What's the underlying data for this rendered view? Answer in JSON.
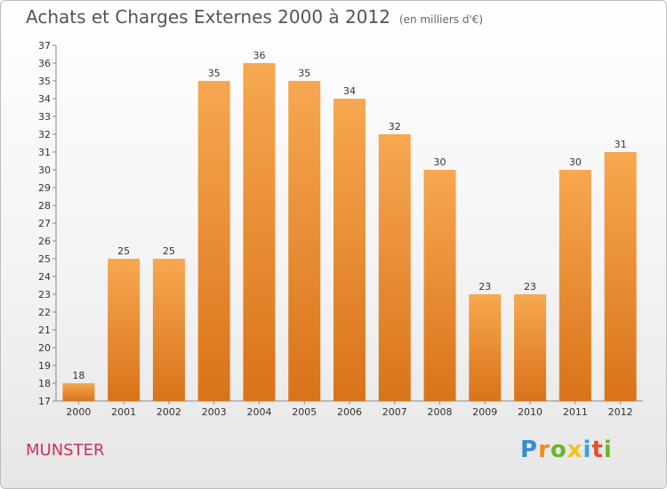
{
  "chart_data": {
    "type": "bar",
    "title": "Achats et Charges Externes 2000 à 2012",
    "unit_label": "(en milliers d'€)",
    "categories": [
      "2000",
      "2001",
      "2002",
      "2003",
      "2004",
      "2005",
      "2006",
      "2007",
      "2008",
      "2009",
      "2010",
      "2011",
      "2012"
    ],
    "values": [
      18,
      25,
      25,
      35,
      36,
      35,
      34,
      32,
      30,
      23,
      23,
      30,
      31
    ],
    "ylim": [
      17,
      37
    ],
    "yticks": [
      17,
      18,
      19,
      20,
      21,
      22,
      23,
      24,
      25,
      26,
      27,
      28,
      29,
      30,
      31,
      32,
      33,
      34,
      35,
      36,
      37
    ],
    "grid": false,
    "bar_color": "#f09a3e",
    "bar_color_dark": "#d9731a"
  },
  "footer": {
    "city": "MUNSTER",
    "logo": {
      "letters": [
        "P",
        "r",
        "o",
        "x",
        "i",
        "t",
        "i"
      ],
      "colors": [
        "#2f8fd8",
        "#f08a1c",
        "#6ab42d",
        "#f0c419",
        "#3aa0e0",
        "#e2502a",
        "#6ab42d"
      ]
    }
  }
}
